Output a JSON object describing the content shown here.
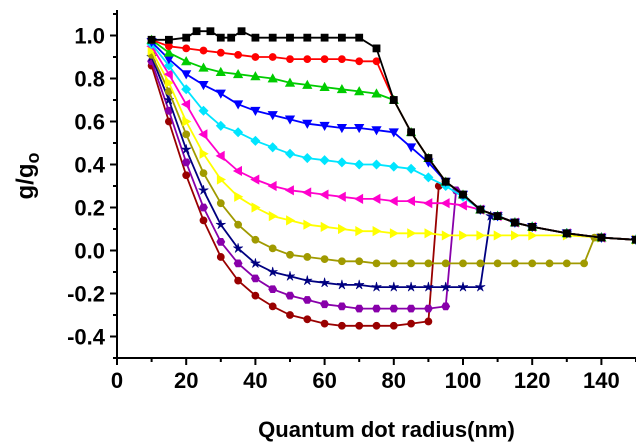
{
  "chart_data": {
    "type": "line",
    "xlabel": "Quantum dot radius(nm)",
    "ylabel": {
      "main": "g/g",
      "sub": "o"
    },
    "xlim": [
      0,
      150
    ],
    "ylim": [
      -0.5,
      1.1
    ],
    "x_ticks": [
      0,
      20,
      40,
      60,
      80,
      100,
      120,
      140
    ],
    "y_ticks": [
      1.0,
      0.8,
      0.6,
      0.4,
      0.2,
      0.0,
      -0.2,
      -0.4
    ],
    "x_tick_labels": [
      "0",
      "20",
      "40",
      "60",
      "80",
      "100",
      "120",
      "140"
    ],
    "y_tick_labels": [
      "1.0",
      "0.8",
      "0.6",
      "0.4",
      "0.2",
      "0.0",
      "-0.2",
      "-0.4"
    ],
    "grid": false,
    "legend": "none",
    "series": [
      {
        "color": "#000000",
        "marker": "square",
        "points": [
          [
            10,
            0.98
          ],
          [
            15,
            0.98
          ],
          [
            20,
            0.99
          ],
          [
            23,
            1.02
          ],
          [
            27,
            1.02
          ],
          [
            30,
            0.99
          ],
          [
            33,
            0.99
          ],
          [
            36,
            1.02
          ],
          [
            40,
            0.99
          ],
          [
            45,
            0.99
          ],
          [
            50,
            0.99
          ],
          [
            55,
            0.99
          ],
          [
            60,
            0.99
          ],
          [
            65,
            0.99
          ],
          [
            70,
            0.99
          ],
          [
            75,
            0.94
          ],
          [
            80,
            0.7
          ],
          [
            85,
            0.55
          ],
          [
            90,
            0.43
          ],
          [
            95,
            0.32
          ],
          [
            100,
            0.26
          ],
          [
            105,
            0.19
          ],
          [
            110,
            0.16
          ],
          [
            115,
            0.13
          ],
          [
            120,
            0.11
          ],
          [
            130,
            0.08
          ],
          [
            140,
            0.06
          ],
          [
            150,
            0.05
          ]
        ]
      },
      {
        "color": "#ff0000",
        "marker": "circle",
        "points": [
          [
            10,
            0.98
          ],
          [
            15,
            0.95
          ],
          [
            20,
            0.94
          ],
          [
            25,
            0.93
          ],
          [
            30,
            0.92
          ],
          [
            35,
            0.91
          ],
          [
            40,
            0.9
          ],
          [
            45,
            0.9
          ],
          [
            50,
            0.89
          ],
          [
            55,
            0.89
          ],
          [
            60,
            0.89
          ],
          [
            65,
            0.89
          ],
          [
            70,
            0.88
          ],
          [
            75,
            0.88
          ],
          [
            80,
            0.7
          ],
          [
            85,
            0.55
          ],
          [
            90,
            0.43
          ],
          [
            95,
            0.32
          ],
          [
            100,
            0.26
          ],
          [
            105,
            0.19
          ],
          [
            110,
            0.16
          ],
          [
            115,
            0.13
          ],
          [
            120,
            0.11
          ],
          [
            130,
            0.08
          ],
          [
            140,
            0.06
          ],
          [
            150,
            0.05
          ]
        ]
      },
      {
        "color": "#00cc00",
        "marker": "triangle-up",
        "points": [
          [
            10,
            0.98
          ],
          [
            15,
            0.92
          ],
          [
            20,
            0.88
          ],
          [
            25,
            0.85
          ],
          [
            30,
            0.83
          ],
          [
            35,
            0.82
          ],
          [
            40,
            0.81
          ],
          [
            45,
            0.8
          ],
          [
            50,
            0.78
          ],
          [
            55,
            0.77
          ],
          [
            60,
            0.76
          ],
          [
            65,
            0.75
          ],
          [
            70,
            0.74
          ],
          [
            75,
            0.73
          ],
          [
            80,
            0.7
          ],
          [
            85,
            0.55
          ],
          [
            90,
            0.43
          ],
          [
            95,
            0.32
          ],
          [
            100,
            0.26
          ],
          [
            105,
            0.19
          ],
          [
            110,
            0.16
          ],
          [
            115,
            0.13
          ],
          [
            120,
            0.11
          ],
          [
            130,
            0.08
          ],
          [
            140,
            0.06
          ],
          [
            150,
            0.05
          ]
        ]
      },
      {
        "color": "#0000ff",
        "marker": "triangle-down",
        "points": [
          [
            10,
            0.97
          ],
          [
            15,
            0.89
          ],
          [
            20,
            0.82
          ],
          [
            25,
            0.77
          ],
          [
            30,
            0.73
          ],
          [
            35,
            0.68
          ],
          [
            40,
            0.65
          ],
          [
            45,
            0.63
          ],
          [
            50,
            0.61
          ],
          [
            55,
            0.59
          ],
          [
            60,
            0.58
          ],
          [
            65,
            0.57
          ],
          [
            70,
            0.57
          ],
          [
            75,
            0.56
          ],
          [
            80,
            0.55
          ],
          [
            85,
            0.48
          ],
          [
            90,
            0.41
          ],
          [
            95,
            0.32
          ],
          [
            100,
            0.26
          ],
          [
            105,
            0.19
          ],
          [
            110,
            0.16
          ],
          [
            115,
            0.13
          ],
          [
            120,
            0.11
          ],
          [
            130,
            0.08
          ],
          [
            140,
            0.06
          ],
          [
            150,
            0.05
          ]
        ]
      },
      {
        "color": "#00e5ff",
        "marker": "diamond",
        "points": [
          [
            10,
            0.96
          ],
          [
            15,
            0.86
          ],
          [
            20,
            0.75
          ],
          [
            25,
            0.65
          ],
          [
            30,
            0.58
          ],
          [
            35,
            0.55
          ],
          [
            40,
            0.51
          ],
          [
            45,
            0.48
          ],
          [
            50,
            0.45
          ],
          [
            55,
            0.43
          ],
          [
            60,
            0.42
          ],
          [
            65,
            0.41
          ],
          [
            70,
            0.4
          ],
          [
            75,
            0.4
          ],
          [
            80,
            0.39
          ],
          [
            85,
            0.38
          ],
          [
            90,
            0.34
          ],
          [
            95,
            0.3
          ],
          [
            100,
            0.25
          ],
          [
            105,
            0.19
          ],
          [
            110,
            0.16
          ],
          [
            115,
            0.13
          ],
          [
            120,
            0.11
          ],
          [
            130,
            0.08
          ],
          [
            140,
            0.06
          ],
          [
            150,
            0.05
          ]
        ]
      },
      {
        "color": "#ff00cc",
        "marker": "triangle-left",
        "points": [
          [
            10,
            0.95
          ],
          [
            15,
            0.82
          ],
          [
            20,
            0.68
          ],
          [
            25,
            0.54
          ],
          [
            30,
            0.44
          ],
          [
            35,
            0.37
          ],
          [
            40,
            0.33
          ],
          [
            45,
            0.3
          ],
          [
            50,
            0.28
          ],
          [
            55,
            0.27
          ],
          [
            60,
            0.26
          ],
          [
            65,
            0.25
          ],
          [
            70,
            0.24
          ],
          [
            75,
            0.24
          ],
          [
            80,
            0.23
          ],
          [
            85,
            0.23
          ],
          [
            90,
            0.22
          ],
          [
            95,
            0.22
          ],
          [
            100,
            0.21
          ],
          [
            105,
            0.19
          ],
          [
            110,
            0.16
          ],
          [
            115,
            0.13
          ],
          [
            120,
            0.11
          ],
          [
            130,
            0.08
          ],
          [
            140,
            0.06
          ],
          [
            150,
            0.05
          ]
        ]
      },
      {
        "color": "#ffff00",
        "marker": "triangle-right",
        "points": [
          [
            10,
            0.93
          ],
          [
            15,
            0.78
          ],
          [
            20,
            0.6
          ],
          [
            25,
            0.45
          ],
          [
            30,
            0.33
          ],
          [
            35,
            0.25
          ],
          [
            40,
            0.2
          ],
          [
            45,
            0.16
          ],
          [
            50,
            0.14
          ],
          [
            55,
            0.12
          ],
          [
            60,
            0.11
          ],
          [
            65,
            0.1
          ],
          [
            70,
            0.09
          ],
          [
            75,
            0.09
          ],
          [
            80,
            0.08
          ],
          [
            85,
            0.08
          ],
          [
            90,
            0.08
          ],
          [
            95,
            0.07
          ],
          [
            100,
            0.07
          ],
          [
            105,
            0.07
          ],
          [
            110,
            0.07
          ],
          [
            115,
            0.07
          ],
          [
            120,
            0.07
          ],
          [
            130,
            0.07
          ],
          [
            140,
            0.06
          ],
          [
            150,
            0.05
          ]
        ]
      },
      {
        "color": "#a09a00",
        "marker": "circle",
        "points": [
          [
            10,
            0.91
          ],
          [
            15,
            0.74
          ],
          [
            20,
            0.54
          ],
          [
            25,
            0.36
          ],
          [
            30,
            0.22
          ],
          [
            35,
            0.12
          ],
          [
            40,
            0.05
          ],
          [
            45,
            0.01
          ],
          [
            50,
            -0.02
          ],
          [
            55,
            -0.03
          ],
          [
            60,
            -0.04
          ],
          [
            65,
            -0.05
          ],
          [
            70,
            -0.05
          ],
          [
            75,
            -0.06
          ],
          [
            80,
            -0.06
          ],
          [
            85,
            -0.06
          ],
          [
            90,
            -0.06
          ],
          [
            95,
            -0.06
          ],
          [
            100,
            -0.06
          ],
          [
            105,
            -0.06
          ],
          [
            110,
            -0.06
          ],
          [
            115,
            -0.06
          ],
          [
            120,
            -0.06
          ],
          [
            125,
            -0.06
          ],
          [
            130,
            -0.06
          ],
          [
            135,
            -0.06
          ],
          [
            138,
            0.06
          ],
          [
            140,
            0.06
          ],
          [
            150,
            0.05
          ]
        ]
      },
      {
        "color": "#000080",
        "marker": "star",
        "points": [
          [
            10,
            0.9
          ],
          [
            15,
            0.7
          ],
          [
            20,
            0.47
          ],
          [
            25,
            0.28
          ],
          [
            30,
            0.12
          ],
          [
            35,
            0.01
          ],
          [
            40,
            -0.06
          ],
          [
            45,
            -0.1
          ],
          [
            50,
            -0.12
          ],
          [
            55,
            -0.14
          ],
          [
            60,
            -0.15
          ],
          [
            65,
            -0.16
          ],
          [
            70,
            -0.16
          ],
          [
            75,
            -0.17
          ],
          [
            80,
            -0.17
          ],
          [
            85,
            -0.17
          ],
          [
            90,
            -0.17
          ],
          [
            95,
            -0.17
          ],
          [
            100,
            -0.17
          ],
          [
            105,
            -0.17
          ],
          [
            108,
            0.16
          ],
          [
            110,
            0.16
          ],
          [
            115,
            0.13
          ],
          [
            120,
            0.11
          ],
          [
            130,
            0.08
          ],
          [
            140,
            0.06
          ],
          [
            150,
            0.05
          ]
        ]
      },
      {
        "color": "#8800aa",
        "marker": "hexagon",
        "points": [
          [
            10,
            0.88
          ],
          [
            15,
            0.65
          ],
          [
            20,
            0.41
          ],
          [
            25,
            0.2
          ],
          [
            30,
            0.04
          ],
          [
            35,
            -0.06
          ],
          [
            40,
            -0.13
          ],
          [
            45,
            -0.18
          ],
          [
            50,
            -0.21
          ],
          [
            55,
            -0.23
          ],
          [
            60,
            -0.25
          ],
          [
            65,
            -0.26
          ],
          [
            70,
            -0.27
          ],
          [
            75,
            -0.27
          ],
          [
            80,
            -0.27
          ],
          [
            85,
            -0.27
          ],
          [
            90,
            -0.27
          ],
          [
            95,
            -0.26
          ],
          [
            98,
            0.28
          ],
          [
            100,
            0.26
          ],
          [
            105,
            0.19
          ],
          [
            110,
            0.16
          ],
          [
            115,
            0.13
          ],
          [
            120,
            0.11
          ],
          [
            130,
            0.08
          ],
          [
            140,
            0.06
          ],
          [
            150,
            0.05
          ]
        ]
      },
      {
        "color": "#990000",
        "marker": "circle",
        "points": [
          [
            10,
            0.86
          ],
          [
            15,
            0.6
          ],
          [
            20,
            0.35
          ],
          [
            25,
            0.14
          ],
          [
            30,
            -0.03
          ],
          [
            35,
            -0.14
          ],
          [
            40,
            -0.21
          ],
          [
            45,
            -0.26
          ],
          [
            50,
            -0.3
          ],
          [
            55,
            -0.32
          ],
          [
            60,
            -0.34
          ],
          [
            65,
            -0.35
          ],
          [
            70,
            -0.35
          ],
          [
            75,
            -0.35
          ],
          [
            80,
            -0.35
          ],
          [
            85,
            -0.34
          ],
          [
            90,
            -0.33
          ],
          [
            93,
            0.3
          ],
          [
            95,
            0.32
          ],
          [
            100,
            0.26
          ],
          [
            105,
            0.19
          ],
          [
            110,
            0.16
          ],
          [
            115,
            0.13
          ],
          [
            120,
            0.11
          ],
          [
            130,
            0.08
          ],
          [
            140,
            0.06
          ],
          [
            150,
            0.05
          ]
        ]
      }
    ]
  }
}
